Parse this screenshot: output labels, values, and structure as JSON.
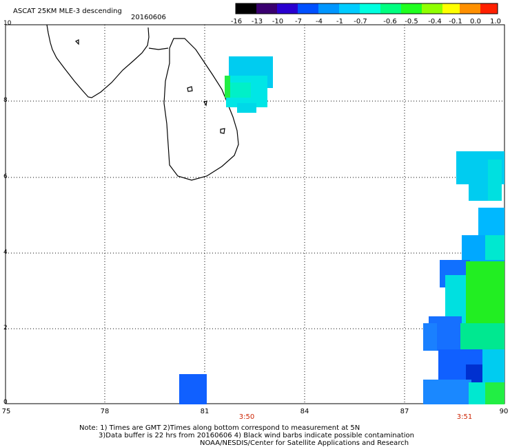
{
  "header": {
    "title": "ASCAT 25KM MLE-3 descending",
    "date": "20160606"
  },
  "colorbar": {
    "ticks": [
      "-16",
      "-13",
      "-10",
      "-7",
      "-4",
      "-1",
      "-0.7",
      "-0.6",
      "-0.5",
      "-0.4",
      "-0.1",
      "0.0",
      "1.0"
    ],
    "colors": [
      "#000000",
      "#2a0050",
      "#4b00a0",
      "#2200e0",
      "#0050ff",
      "#0096ff",
      "#00d8ff",
      "#00ffc0",
      "#00ff40",
      "#90ff00",
      "#ffff00",
      "#ff9000",
      "#ff2000"
    ]
  },
  "axes": {
    "x_ticks": [
      "75",
      "78",
      "81",
      "84",
      "87",
      "90"
    ],
    "y_ticks": [
      "0",
      "2",
      "4",
      "6",
      "8",
      "10"
    ]
  },
  "times": [
    "3:50",
    "3:51"
  ],
  "notes": {
    "line1": "Note: 1) Times are GMT 2)Times along bottom correspond to measurement at 5N",
    "line2": "3)Data buffer is 22 hrs from 20160606 4) Black wind barbs indicate possible contamination",
    "line3": "NOAA/NESDIS/Center for Satellite Applications and Research"
  }
}
